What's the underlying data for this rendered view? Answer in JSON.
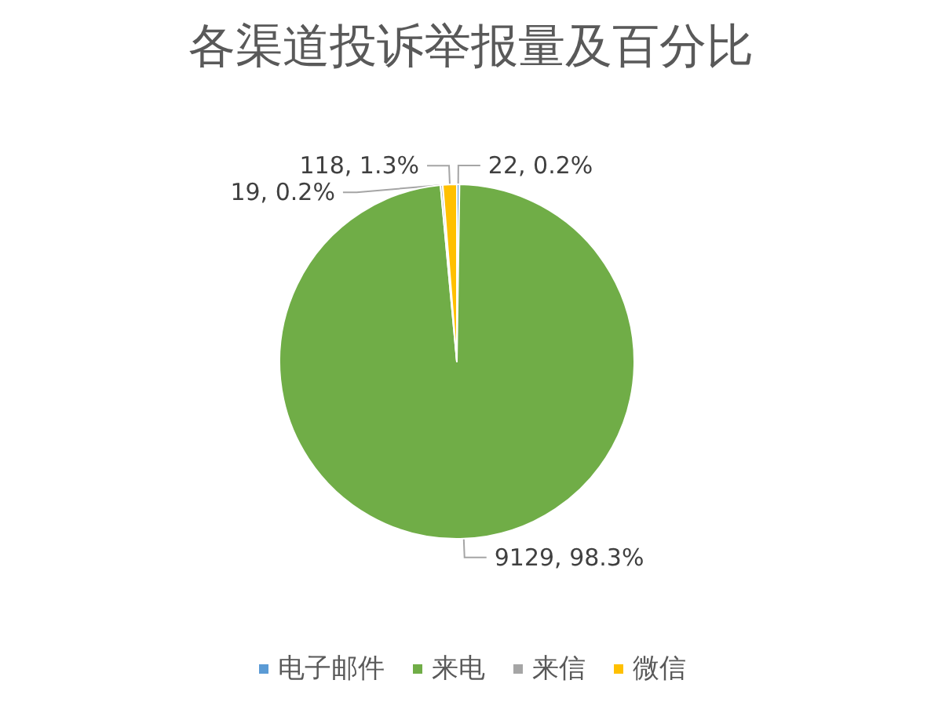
{
  "chart_data": {
    "type": "pie",
    "title": "各渠道投诉举报量及百分比",
    "categories": [
      "电子邮件",
      "来电",
      "来信",
      "微信"
    ],
    "values": [
      22,
      9129,
      19,
      118
    ],
    "colors": [
      "#5b9bd5",
      "#70ad47",
      "#a5a5a5",
      "#ffc000"
    ],
    "value_labels": [
      "22, 0.2%",
      "9129, 98.3%",
      "19, 0.2%",
      "118, 1.3%"
    ],
    "legend": "bottom"
  }
}
